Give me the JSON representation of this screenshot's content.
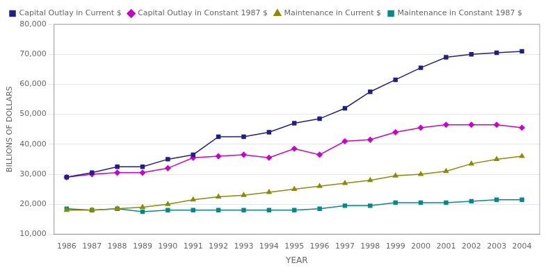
{
  "chart_data": {
    "type": "line",
    "x_label": "YEAR",
    "y_label": "BILLIONS OF DOLLARS",
    "x": [
      1986,
      1987,
      1988,
      1989,
      1990,
      1991,
      1992,
      1993,
      1994,
      1995,
      1996,
      1997,
      1998,
      1999,
      2000,
      2001,
      2002,
      2003,
      2004
    ],
    "series": [
      {
        "name": "Capital Outlay in Current $",
        "color": "#1F1F8B",
        "marker": "square",
        "values": [
          29000,
          30500,
          32500,
          32500,
          35000,
          36500,
          42500,
          42500,
          44000,
          47000,
          48500,
          52000,
          57500,
          61500,
          65500,
          69000,
          70000,
          70500,
          71000
        ]
      },
      {
        "name": "Capital Outlay in Constant 1987 $",
        "color": "#CC00CC",
        "marker": "diamond",
        "values": [
          29000,
          30000,
          30500,
          30500,
          32000,
          35500,
          36000,
          36500,
          35500,
          38500,
          36500,
          41000,
          41500,
          44000,
          45500,
          46500,
          46500,
          46500,
          45500
        ]
      },
      {
        "name": "Maintenance in Current $",
        "color": "#8B8B00",
        "marker": "triangle",
        "values": [
          18000,
          18000,
          18500,
          19000,
          20000,
          21500,
          22500,
          23000,
          24000,
          25000,
          26000,
          27000,
          28000,
          29500,
          30000,
          31000,
          33500,
          35000,
          36000
        ]
      },
      {
        "name": "Maintenance in Constant 1987 $",
        "color": "#008B8B",
        "marker": "square",
        "values": [
          18500,
          18000,
          18500,
          17500,
          18000,
          18000,
          18000,
          18000,
          18000,
          18000,
          18500,
          19500,
          19500,
          20500,
          20500,
          20500,
          21000,
          21500,
          21500
        ]
      }
    ],
    "xlim": [
      1985.5,
      2004.7
    ],
    "xticks": [
      1986,
      1987,
      1988,
      1989,
      1990,
      1991,
      1992,
      1993,
      1994,
      1995,
      1996,
      1997,
      1998,
      1999,
      2000,
      2001,
      2002,
      2003,
      2004
    ],
    "ylim": [
      10000,
      80000
    ],
    "yticks": [
      {
        "value": 10000,
        "label": "10,000"
      },
      {
        "value": 20000,
        "label": "20,000"
      },
      {
        "value": 30000,
        "label": "30,000"
      },
      {
        "value": 40000,
        "label": "40,000"
      },
      {
        "value": 50000,
        "label": "50,000"
      },
      {
        "value": 60000,
        "label": "60,000"
      },
      {
        "value": 70000,
        "label": "70,000"
      },
      {
        "value": 80000,
        "label": "80,000"
      }
    ],
    "grid": true,
    "legend": "upper left"
  }
}
